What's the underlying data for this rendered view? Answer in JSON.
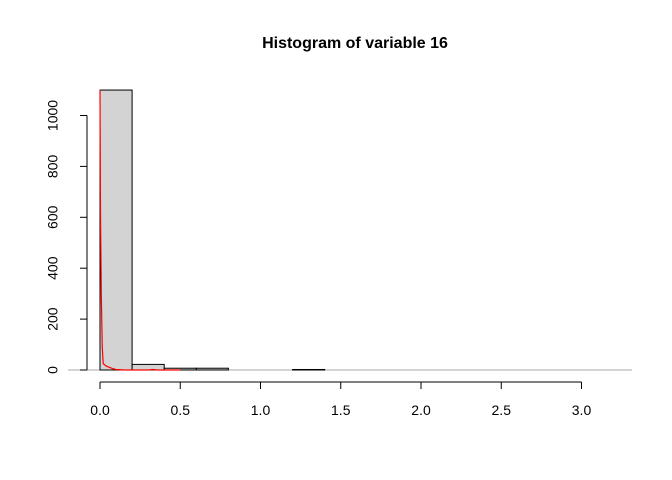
{
  "chart_data": {
    "type": "bar",
    "title": "Histogram of variable 16",
    "xlabel": "",
    "ylabel": "",
    "bin_width": 0.2,
    "bins": [
      {
        "start": 0.0,
        "end": 0.2,
        "count": 1100
      },
      {
        "start": 0.2,
        "end": 0.4,
        "count": 22
      },
      {
        "start": 0.4,
        "end": 0.6,
        "count": 7
      },
      {
        "start": 0.6,
        "end": 0.8,
        "count": 7
      },
      {
        "start": 0.8,
        "end": 1.0,
        "count": 0
      },
      {
        "start": 1.0,
        "end": 1.2,
        "count": 0
      },
      {
        "start": 1.2,
        "end": 1.4,
        "count": 2
      }
    ],
    "xlim": [
      0,
      3.3
    ],
    "ylim": [
      0,
      1100
    ],
    "x_ticks": [
      0.0,
      0.5,
      1.0,
      1.5,
      2.0,
      2.5,
      3.0
    ],
    "x_tick_labels": [
      "0.0",
      "0.5",
      "1.0",
      "1.5",
      "2.0",
      "2.5",
      "3.0"
    ],
    "y_ticks": [
      0,
      200,
      400,
      600,
      800,
      1000
    ],
    "y_tick_labels": [
      "0",
      "200",
      "400",
      "600",
      "800",
      "1000"
    ],
    "density_curve": {
      "color": "#ff0000",
      "points": [
        [
          0.0,
          1100
        ],
        [
          0.003,
          620
        ],
        [
          0.008,
          300
        ],
        [
          0.014,
          90
        ],
        [
          0.02,
          25
        ],
        [
          0.04,
          15
        ],
        [
          0.06,
          10
        ],
        [
          0.08,
          5
        ],
        [
          0.1,
          2
        ],
        [
          0.13,
          1
        ],
        [
          0.16,
          0
        ],
        [
          0.2,
          0
        ],
        [
          0.3,
          0
        ],
        [
          0.33,
          2
        ],
        [
          0.36,
          0
        ],
        [
          0.5,
          0
        ]
      ]
    },
    "bar_fill": "#d3d3d3",
    "baseline_color": "#a9a9a9",
    "grid": false,
    "legend": "none"
  }
}
